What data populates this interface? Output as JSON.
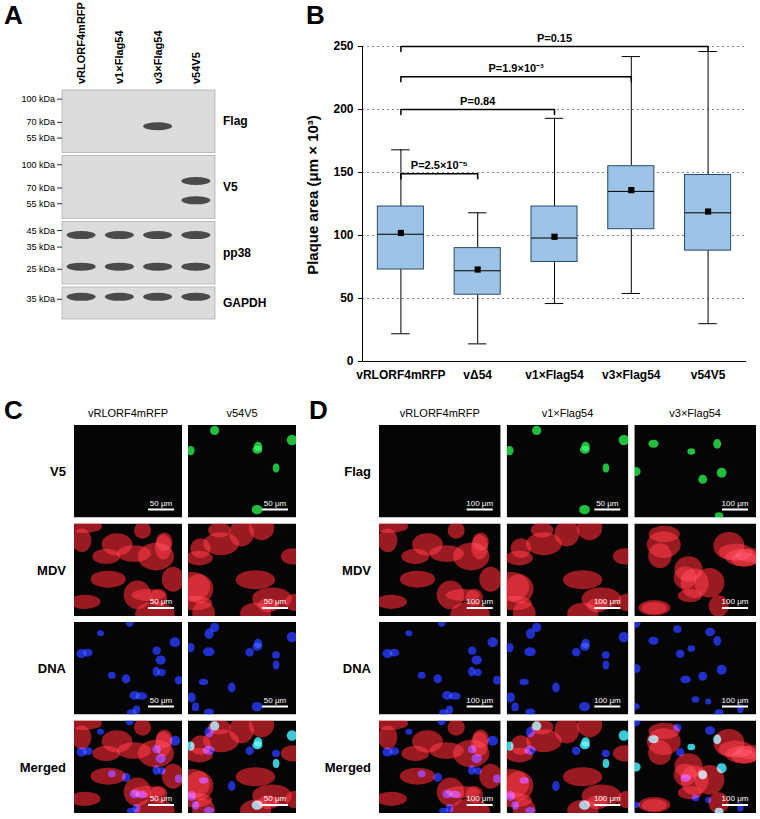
{
  "panel_labels": [
    "A",
    "B",
    "C",
    "D"
  ],
  "blot": {
    "lanes": [
      "vRLORF4mRFP",
      "v1×Flag54",
      "v3×Flag54",
      "v54V5"
    ],
    "strips": [
      {
        "label": "Flag",
        "markers": [
          {
            "value": 100,
            "label": "100 kDa"
          },
          {
            "value": 70,
            "label": "70 kDa"
          },
          {
            "value": 55,
            "label": "55 kDa"
          }
        ],
        "bands": [
          {
            "lane": 2,
            "kDa": 66
          }
        ]
      },
      {
        "label": "V5",
        "markers": [
          {
            "value": 100,
            "label": "100 kDa"
          },
          {
            "value": 70,
            "label": "70 kDa"
          },
          {
            "value": 55,
            "label": "55 kDa"
          }
        ],
        "bands": [
          {
            "lane": 3,
            "kDa": 78
          },
          {
            "lane": 3,
            "kDa": 58
          }
        ]
      },
      {
        "label": "pp38",
        "markers": [
          {
            "value": 45,
            "label": "45 kDa"
          },
          {
            "value": 35,
            "label": "35 kDa"
          },
          {
            "value": 25,
            "label": "25 kDa"
          }
        ],
        "bands": [
          {
            "lane": 0,
            "kDa": 42
          },
          {
            "lane": 1,
            "kDa": 42
          },
          {
            "lane": 2,
            "kDa": 42
          },
          {
            "lane": 3,
            "kDa": 42
          },
          {
            "lane": 0,
            "kDa": 26
          },
          {
            "lane": 1,
            "kDa": 26
          },
          {
            "lane": 2,
            "kDa": 26
          },
          {
            "lane": 3,
            "kDa": 26
          }
        ]
      },
      {
        "label": "GAPDH",
        "markers": [
          {
            "value": 35,
            "label": "35 kDa"
          }
        ],
        "bands": [
          {
            "lane": 0,
            "kDa": 36
          },
          {
            "lane": 1,
            "kDa": 36
          },
          {
            "lane": 2,
            "kDa": 36
          },
          {
            "lane": 3,
            "kDa": 36
          }
        ]
      }
    ]
  },
  "chart_data": {
    "type": "box",
    "categories": [
      "vRLORF4mRFP",
      "vΔ54",
      "v1×Flag54",
      "v3×Flag54",
      "v54V5"
    ],
    "whisker_low": [
      22,
      14,
      46,
      54,
      30
    ],
    "q1": [
      73,
      53,
      79,
      105,
      88
    ],
    "median": [
      101,
      72,
      98,
      135,
      118
    ],
    "q3": [
      123,
      90,
      123,
      155,
      148
    ],
    "whisker_high": [
      168,
      118,
      193,
      242,
      246
    ],
    "mean": [
      102,
      73,
      99,
      136,
      119
    ],
    "color": "#9dc3e6",
    "ylabel": "Plaque area (μm × 10³)",
    "ylim": [
      0,
      250
    ],
    "yticks": [
      0,
      50,
      100,
      150,
      200,
      250
    ],
    "grid": true,
    "annotations": [
      {
        "from": "vRLORF4mRFP",
        "to": "vΔ54",
        "y": 149,
        "label": "P=2.5×10⁻⁵"
      },
      {
        "from": "vRLORF4mRFP",
        "to": "v1×Flag54",
        "y": 200,
        "label": "P=0.84"
      },
      {
        "from": "vRLORF4mRFP",
        "to": "v3×Flag54",
        "y": 226,
        "label": "P=1.9×10⁻³"
      },
      {
        "from": "vRLORF4mRFP",
        "to": "v54V5",
        "y": 250,
        "label": "P=0.15"
      }
    ]
  },
  "micrographs": [
    {
      "columns": [
        "vRLORF4mRFP",
        "v54V5"
      ],
      "rows": [
        {
          "label": "V5",
          "colors": [
            "#22dd44"
          ],
          "stained": [
            false,
            true
          ],
          "scale_bars": [
            "50 μm",
            "50 μm"
          ]
        },
        {
          "label": "MDV",
          "colors": [
            "#e8202a"
          ],
          "scale_bars": [
            "50 μm",
            "50 μm"
          ]
        },
        {
          "label": "DNA",
          "colors": [
            "#2233ee"
          ],
          "scale_bars": [
            "50 μm",
            "50 μm"
          ]
        },
        {
          "label": "Merged",
          "colors": [
            "#e8202a",
            "#2233ee",
            "#22dd44"
          ],
          "stained": [
            false,
            true
          ],
          "scale_bars": [
            "50 μm",
            "50 μm"
          ]
        }
      ]
    },
    {
      "columns": [
        "vRLORF4mRFP",
        "v1×Flag54",
        "v3×Flag54"
      ],
      "rows": [
        {
          "label": "Flag",
          "colors": [
            "#22dd44"
          ],
          "stained": [
            false,
            true,
            true
          ],
          "scale_bars": [
            "100 μm",
            "50 μm",
            "100 μm"
          ]
        },
        {
          "label": "MDV",
          "colors": [
            "#e8202a"
          ],
          "scale_bars": [
            "100 μm",
            "100 μm",
            "100 μm"
          ]
        },
        {
          "label": "DNA",
          "colors": [
            "#2233ee"
          ],
          "scale_bars": [
            "100 μm",
            "100 μm",
            "100 μm"
          ]
        },
        {
          "label": "Merged",
          "colors": [
            "#e8202a",
            "#2233ee",
            "#22dd44"
          ],
          "stained": [
            false,
            true,
            true
          ],
          "scale_bars": [
            "100 μm",
            "100 μm",
            "100 μm"
          ]
        }
      ]
    }
  ]
}
